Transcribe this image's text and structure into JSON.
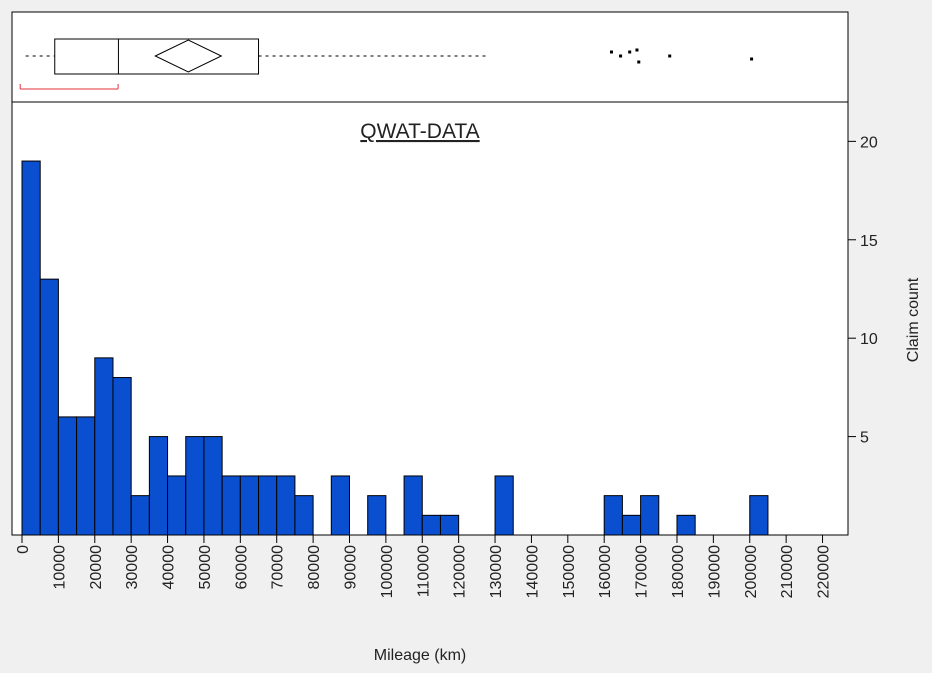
{
  "chart_data": {
    "type": "histogram",
    "title": "QWAT-DATA",
    "x_label": "Mileage (km)",
    "y_label": "Claim count",
    "bins": [
      0,
      5000,
      10000,
      15000,
      20000,
      25000,
      30000,
      35000,
      40000,
      45000,
      50000,
      55000,
      60000,
      65000,
      70000,
      75000,
      80000,
      85000,
      90000,
      95000,
      100000,
      105000,
      110000,
      115000,
      120000,
      125000,
      130000,
      135000,
      140000,
      145000,
      150000,
      155000,
      160000,
      165000,
      170000,
      175000,
      180000,
      185000,
      190000,
      195000,
      200000,
      205000
    ],
    "values": [
      19,
      13,
      6,
      6,
      9,
      8,
      2,
      5,
      3,
      5,
      5,
      3,
      3,
      3,
      3,
      2,
      0,
      3,
      0,
      2,
      0,
      3,
      1,
      1,
      0,
      0,
      3,
      0,
      0,
      0,
      0,
      0,
      2,
      1,
      2,
      0,
      1,
      0,
      0,
      0,
      2
    ],
    "color": "#0b4fd1",
    "xlim": [
      -2750,
      227000
    ],
    "xticks": [
      0,
      10000,
      20000,
      30000,
      40000,
      50000,
      60000,
      70000,
      80000,
      90000,
      100000,
      110000,
      120000,
      130000,
      140000,
      150000,
      160000,
      170000,
      180000,
      190000,
      200000,
      210000,
      220000
    ],
    "ylim": [
      0,
      22
    ],
    "yticks": [
      5,
      10,
      15,
      20
    ],
    "box": {
      "whisker_low": 1000,
      "q1": 9000,
      "median": 26500,
      "q3": 65000,
      "whisker_high": 128500,
      "mean": 45700,
      "shortest_half": [
        -500,
        26400
      ],
      "outliers": [
        162000,
        164500,
        167000,
        169000,
        169500,
        178000,
        200500
      ]
    }
  }
}
